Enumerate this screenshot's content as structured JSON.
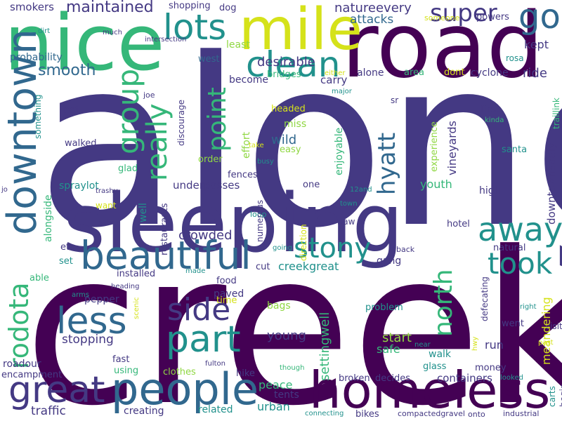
{
  "palette": {
    "dark_purple": "#440154",
    "indigo": "#443983",
    "blue": "#31688e",
    "teal": "#21918c",
    "green": "#35b779",
    "lime": "#90d743",
    "yellow": "#d5e21a"
  },
  "words": [
    {
      "t": "along",
      "c": "indigo",
      "r": false
    },
    {
      "t": "creek",
      "c": "dark_purple",
      "r": false
    },
    {
      "t": "road",
      "c": "dark_purple",
      "r": false
    },
    {
      "t": "nice",
      "c": "green",
      "r": false
    },
    {
      "t": "sleeping",
      "c": "indigo",
      "r": false
    },
    {
      "t": "homeless",
      "c": "dark_purple",
      "r": false
    },
    {
      "t": "people",
      "c": "blue",
      "r": false
    },
    {
      "t": "mile",
      "c": "yellow",
      "r": false
    },
    {
      "t": "downtown",
      "c": "blue",
      "r": true
    },
    {
      "t": "beautiful",
      "c": "blue",
      "r": false
    },
    {
      "t": "great",
      "c": "indigo",
      "r": false
    },
    {
      "t": "less",
      "c": "blue",
      "r": false
    },
    {
      "t": "part",
      "c": "teal",
      "r": false
    },
    {
      "t": "lots",
      "c": "teal",
      "r": false
    },
    {
      "t": "clean",
      "c": "teal",
      "r": false
    },
    {
      "t": "go",
      "c": "blue",
      "r": false
    },
    {
      "t": "side",
      "c": "indigo",
      "r": false
    },
    {
      "t": "away",
      "c": "teal",
      "r": false
    },
    {
      "t": "took",
      "c": "teal",
      "r": false
    },
    {
      "t": "stony",
      "c": "teal",
      "r": false
    },
    {
      "t": "group",
      "c": "green",
      "r": true
    },
    {
      "t": "really",
      "c": "green",
      "r": true
    },
    {
      "t": "point",
      "c": "green",
      "r": true
    },
    {
      "t": "hyatt",
      "c": "blue",
      "r": true
    },
    {
      "t": "north",
      "c": "green",
      "r": true
    },
    {
      "t": "rodota",
      "c": "green",
      "r": true
    },
    {
      "t": "super",
      "c": "indigo",
      "r": false
    },
    {
      "t": "smooth",
      "c": "blue",
      "r": false
    },
    {
      "t": "maintained",
      "c": "indigo",
      "r": false
    },
    {
      "t": "smokers",
      "c": "indigo",
      "r": false
    },
    {
      "t": "shopping",
      "c": "indigo",
      "r": false
    },
    {
      "t": "dog",
      "c": "indigo",
      "r": false
    },
    {
      "t": "natureevery",
      "c": "indigo",
      "r": false
    },
    {
      "t": "attacks",
      "c": "blue",
      "r": false
    },
    {
      "t": "someone",
      "c": "yellow",
      "r": false
    },
    {
      "t": "powers",
      "c": "indigo",
      "r": false
    },
    {
      "t": "desirable",
      "c": "indigo",
      "r": false
    },
    {
      "t": "kept",
      "c": "indigo",
      "r": false
    },
    {
      "t": "probability",
      "c": "blue",
      "r": false
    },
    {
      "t": "intersection",
      "c": "indigo",
      "r": false
    },
    {
      "t": "west",
      "c": "blue",
      "r": false
    },
    {
      "t": "least",
      "c": "lime",
      "r": false
    },
    {
      "t": "rosa",
      "c": "teal",
      "r": false
    },
    {
      "t": "ride",
      "c": "indigo",
      "r": false
    },
    {
      "t": "traillink",
      "c": "green",
      "r": true
    },
    {
      "t": "dirt",
      "c": "teal",
      "r": false
    },
    {
      "t": "much",
      "c": "indigo",
      "r": false
    },
    {
      "t": "joe",
      "c": "indigo",
      "r": false
    },
    {
      "t": "alone",
      "c": "indigo",
      "r": false
    },
    {
      "t": "area",
      "c": "green",
      "r": false
    },
    {
      "t": "dont",
      "c": "yellow",
      "r": false
    },
    {
      "t": "cyclone",
      "c": "indigo",
      "r": false
    },
    {
      "t": "either",
      "c": "yellow",
      "r": false
    },
    {
      "t": "major",
      "c": "teal",
      "r": false
    },
    {
      "t": "carry",
      "c": "indigo",
      "r": false
    },
    {
      "t": "become",
      "c": "indigo",
      "r": false
    },
    {
      "t": "bridges",
      "c": "green",
      "r": false
    },
    {
      "t": "sr",
      "c": "indigo",
      "r": false
    },
    {
      "t": "vineyards",
      "c": "indigo",
      "r": true
    },
    {
      "t": "first",
      "c": "indigo",
      "r": false
    },
    {
      "t": "kinda",
      "c": "green",
      "r": false
    },
    {
      "t": "downtownsadly",
      "c": "indigo",
      "r": true
    },
    {
      "t": "something",
      "c": "teal",
      "r": true
    },
    {
      "t": "pot",
      "c": "indigo",
      "r": false
    },
    {
      "t": "discourage",
      "c": "indigo",
      "r": true
    },
    {
      "t": "effort",
      "c": "lime",
      "r": true
    },
    {
      "t": "headed",
      "c": "yellow",
      "r": false
    },
    {
      "t": "miss",
      "c": "lime",
      "r": false
    },
    {
      "t": "enjoyable",
      "c": "green",
      "r": true
    },
    {
      "t": "experience",
      "c": "lime",
      "r": true
    },
    {
      "t": "walked",
      "c": "indigo",
      "r": false
    },
    {
      "t": "take",
      "c": "yellow",
      "r": false
    },
    {
      "t": "wild",
      "c": "blue",
      "r": false
    },
    {
      "t": "easy",
      "c": "lime",
      "r": false
    },
    {
      "t": "santa",
      "c": "teal",
      "r": false
    },
    {
      "t": "glad",
      "c": "green",
      "r": false
    },
    {
      "t": "order",
      "c": "lime",
      "r": false
    },
    {
      "t": "busy",
      "c": "teal",
      "r": false
    },
    {
      "t": "fences",
      "c": "indigo",
      "r": false
    },
    {
      "t": "spraylot",
      "c": "teal",
      "r": false
    },
    {
      "t": "underpasses",
      "c": "indigo",
      "r": false
    },
    {
      "t": "one",
      "c": "indigo",
      "r": false
    },
    {
      "t": "youth",
      "c": "green",
      "r": false
    },
    {
      "t": "trashy",
      "c": "indigo",
      "r": false
    },
    {
      "t": "12and",
      "c": "teal",
      "r": false
    },
    {
      "t": "high",
      "c": "indigo",
      "r": false
    },
    {
      "t": "jo",
      "c": "indigo",
      "r": false
    },
    {
      "t": "alongside",
      "c": "green",
      "r": true
    },
    {
      "t": "want",
      "c": "yellow",
      "r": false
    },
    {
      "t": "well",
      "c": "teal",
      "r": true
    },
    {
      "t": "restaurants",
      "c": "indigo",
      "r": true
    },
    {
      "t": "town",
      "c": "teal",
      "r": false
    },
    {
      "t": "safely",
      "c": "indigo",
      "r": false
    },
    {
      "t": "loop",
      "c": "teal",
      "r": false
    },
    {
      "t": "numerous",
      "c": "indigo",
      "r": true
    },
    {
      "t": "direction",
      "c": "yellow",
      "r": true
    },
    {
      "t": "saw",
      "c": "indigo",
      "r": false
    },
    {
      "t": "hotel",
      "c": "indigo",
      "r": false
    },
    {
      "t": "crowded",
      "c": "indigo",
      "r": false
    },
    {
      "t": "etc",
      "c": "indigo",
      "r": false
    },
    {
      "t": "set",
      "c": "teal",
      "r": false
    },
    {
      "t": "going",
      "c": "teal",
      "r": false
    },
    {
      "t": "back",
      "c": "indigo",
      "r": false
    },
    {
      "t": "gang",
      "c": "indigo",
      "r": false
    },
    {
      "t": "natural",
      "c": "indigo",
      "r": false
    },
    {
      "t": "installed",
      "c": "indigo",
      "r": false
    },
    {
      "t": "made",
      "c": "teal",
      "r": false
    },
    {
      "t": "cut",
      "c": "indigo",
      "r": false
    },
    {
      "t": "creekgreat",
      "c": "teal",
      "r": false
    },
    {
      "t": "able",
      "c": "green",
      "r": false
    },
    {
      "t": "food",
      "c": "indigo",
      "r": false
    },
    {
      "t": "paved",
      "c": "indigo",
      "r": false
    },
    {
      "t": "heading",
      "c": "indigo",
      "r": false
    },
    {
      "t": "arms",
      "c": "teal",
      "r": false
    },
    {
      "t": "pepper",
      "c": "indigo",
      "r": false
    },
    {
      "t": "scenic",
      "c": "yellow",
      "r": true
    },
    {
      "t": "time",
      "c": "yellow",
      "r": false
    },
    {
      "t": "bags",
      "c": "lime",
      "r": false
    },
    {
      "t": "problem",
      "c": "teal",
      "r": false
    },
    {
      "t": "defecating",
      "c": "indigo",
      "r": true
    },
    {
      "t": "right",
      "c": "teal",
      "r": false
    },
    {
      "t": "visit",
      "c": "indigo",
      "r": false
    },
    {
      "t": "went",
      "c": "indigo",
      "r": false
    },
    {
      "t": "meandering",
      "c": "yellow",
      "r": true
    },
    {
      "t": "stopping",
      "c": "indigo",
      "r": false
    },
    {
      "t": "start",
      "c": "lime",
      "r": false
    },
    {
      "t": "young",
      "c": "indigo",
      "r": false
    },
    {
      "t": "settingwell",
      "c": "green",
      "r": true
    },
    {
      "t": "safe",
      "c": "green",
      "r": false
    },
    {
      "t": "run",
      "c": "indigo",
      "r": false
    },
    {
      "t": "near",
      "c": "teal",
      "r": false
    },
    {
      "t": "hwy",
      "c": "yellow",
      "r": true
    },
    {
      "t": "past",
      "c": "yellow",
      "r": false
    },
    {
      "t": "walk",
      "c": "teal",
      "r": false
    },
    {
      "t": "roadour",
      "c": "indigo",
      "r": false
    },
    {
      "t": "fast",
      "c": "indigo",
      "r": false
    },
    {
      "t": "fulton",
      "c": "indigo",
      "r": false
    },
    {
      "t": "glass",
      "c": "teal",
      "r": false
    },
    {
      "t": "money",
      "c": "indigo",
      "r": false
    },
    {
      "t": "encampment",
      "c": "indigo",
      "r": false
    },
    {
      "t": "using",
      "c": "green",
      "r": false
    },
    {
      "t": "clothes",
      "c": "lime",
      "r": false
    },
    {
      "t": "hike",
      "c": "indigo",
      "r": false
    },
    {
      "t": "though",
      "c": "green",
      "r": false
    },
    {
      "t": "decides",
      "c": "indigo",
      "r": false
    },
    {
      "t": "broken",
      "c": "indigo",
      "r": false
    },
    {
      "t": "looked",
      "c": "teal",
      "r": false
    },
    {
      "t": "carts",
      "c": "teal",
      "r": true
    },
    {
      "t": "begin",
      "c": "indigo",
      "r": true
    },
    {
      "t": "peace",
      "c": "green",
      "r": false
    },
    {
      "t": "tents",
      "c": "indigo",
      "r": false
    },
    {
      "t": "containers",
      "c": "indigo",
      "r": false
    },
    {
      "t": "traffic",
      "c": "indigo",
      "r": false
    },
    {
      "t": "creating",
      "c": "indigo",
      "r": false
    },
    {
      "t": "related",
      "c": "teal",
      "r": false
    },
    {
      "t": "urban",
      "c": "teal",
      "r": false
    },
    {
      "t": "connecting",
      "c": "teal",
      "r": false
    },
    {
      "t": "bikes",
      "c": "indigo",
      "r": false
    },
    {
      "t": "compactedgravel",
      "c": "indigo",
      "r": false
    },
    {
      "t": "onto",
      "c": "indigo",
      "r": false
    },
    {
      "t": "industrial",
      "c": "indigo",
      "r": false
    }
  ]
}
